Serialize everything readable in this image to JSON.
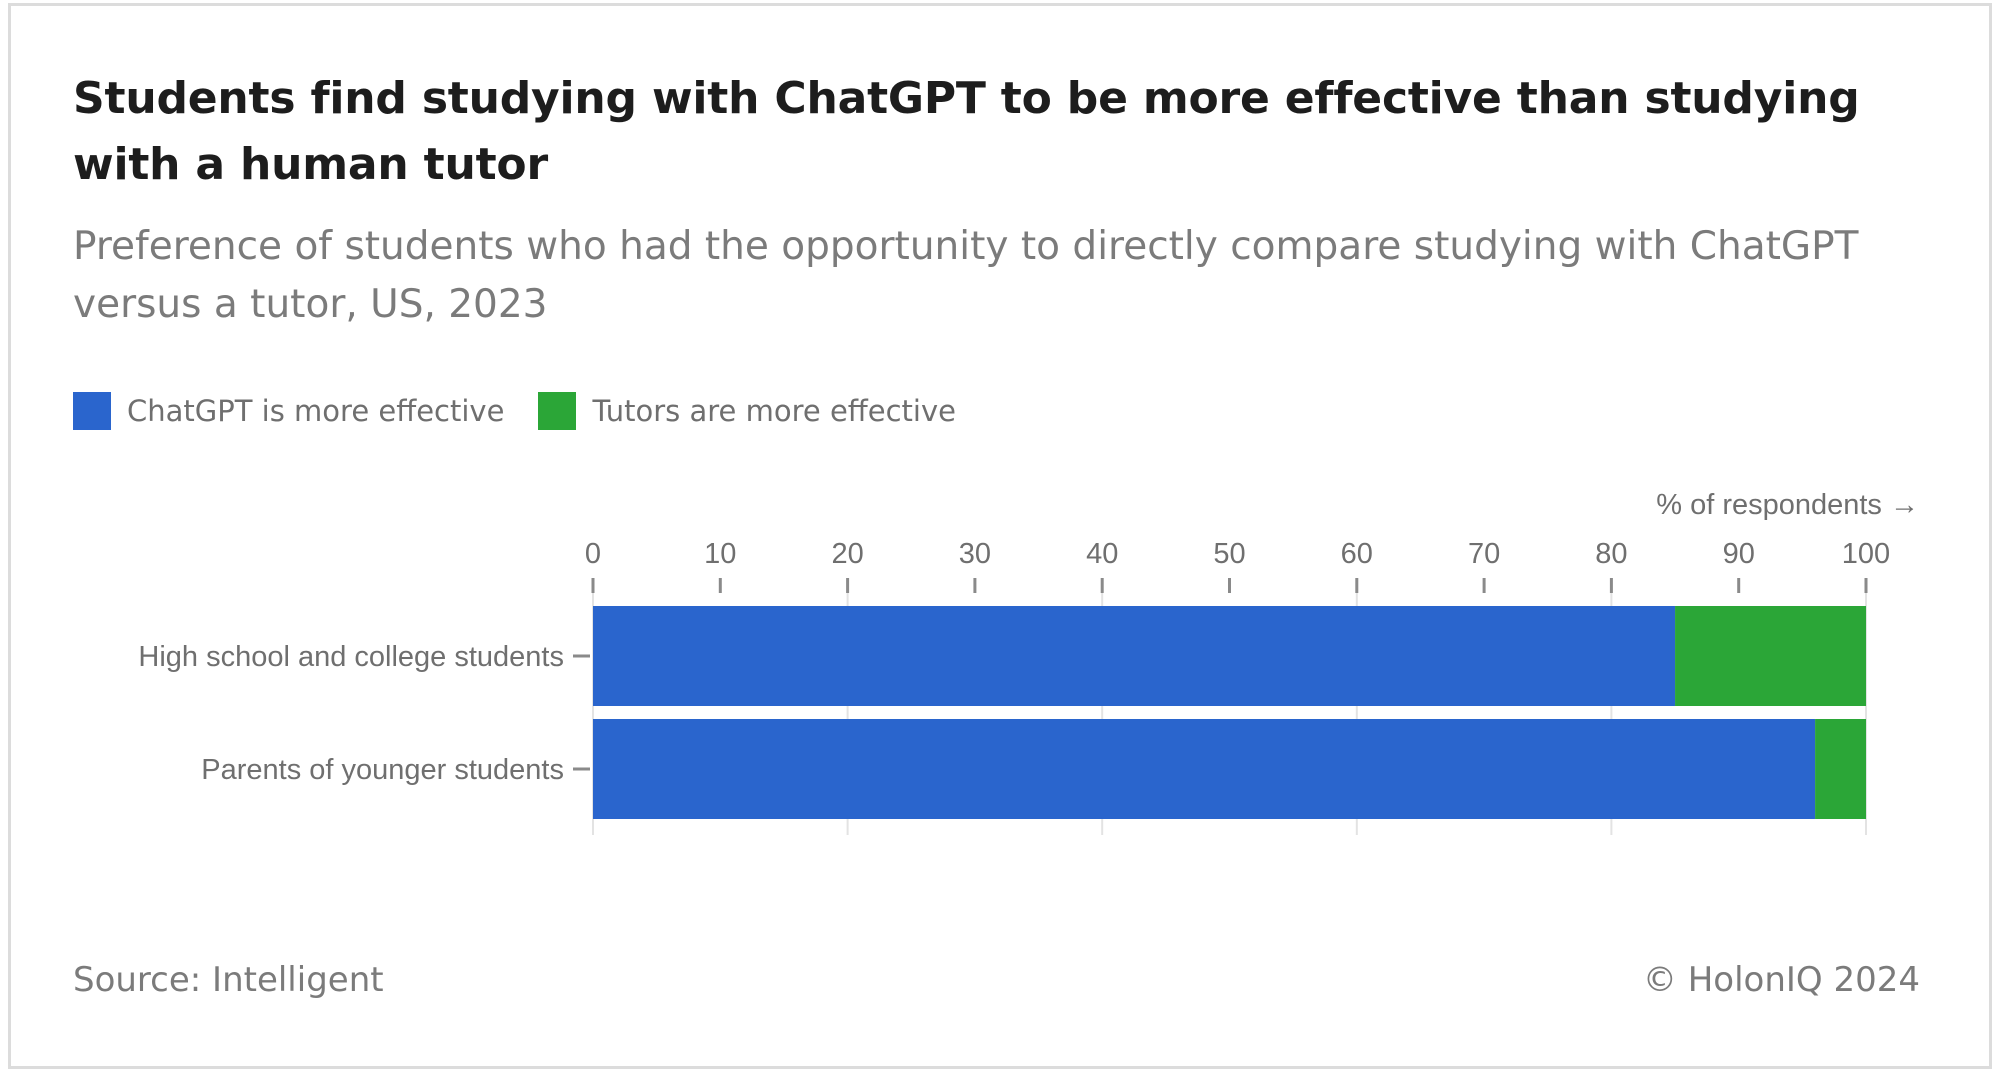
{
  "title": "Students find studying with ChatGPT to be more effective than studying with a human tutor",
  "subtitle": "Preference of students who had the opportunity to directly compare studying with ChatGPT versus a tutor, US, 2023",
  "source": "Source: Intelligent",
  "copyright": "© HolonIQ 2024",
  "colors": {
    "chatgpt": "#2a65cd",
    "tutors": "#2ba637"
  },
  "chart_data": {
    "type": "bar",
    "orientation": "horizontal",
    "stacked": true,
    "categories": [
      "High school and college students",
      "Parents of younger students"
    ],
    "series": [
      {
        "name": "ChatGPT is more effective",
        "values": [
          85,
          96
        ],
        "color": "#2a65cd"
      },
      {
        "name": "Tutors are more effective",
        "values": [
          15,
          4
        ],
        "color": "#2ba637"
      }
    ],
    "xlabel": "% of respondents →",
    "xlim": [
      0,
      100
    ],
    "xticks": [
      "0",
      "10",
      "20",
      "30",
      "40",
      "50",
      "60",
      "70",
      "80",
      "90",
      "100"
    ],
    "legend": "top-left",
    "grid": true
  }
}
